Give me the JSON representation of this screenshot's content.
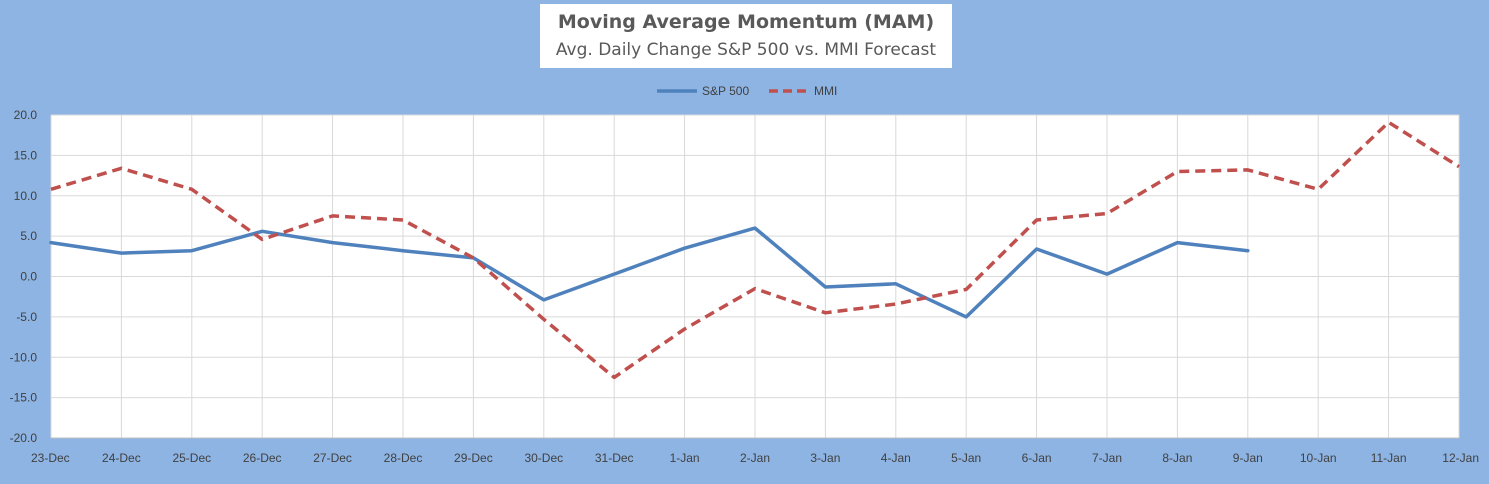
{
  "chart_data": {
    "type": "line",
    "title": "Moving Average Momentum (MAM)",
    "subtitle": "Avg. Daily Change S&P 500 vs. MMI Forecast",
    "categories": [
      "23-Dec",
      "24-Dec",
      "25-Dec",
      "26-Dec",
      "27-Dec",
      "28-Dec",
      "29-Dec",
      "30-Dec",
      "31-Dec",
      "1-Jan",
      "2-Jan",
      "3-Jan",
      "4-Jan",
      "5-Jan",
      "6-Jan",
      "7-Jan",
      "8-Jan",
      "9-Jan",
      "10-Jan",
      "11-Jan",
      "12-Jan"
    ],
    "ylim": [
      -20,
      20
    ],
    "yticks": [
      20,
      15,
      10,
      5,
      0,
      -5,
      -10,
      -15,
      -20
    ],
    "ytick_labels": [
      "20.0",
      "15.0",
      "10.0",
      "5.0",
      "0.0",
      "-5.0",
      "-10.0",
      "-15.0",
      "-20.0"
    ],
    "grid": true,
    "legend_position": "top-center",
    "series": [
      {
        "name": "S&P 500",
        "style": "solid",
        "color": "#4f81bd",
        "values": [
          4.2,
          2.9,
          3.2,
          5.6,
          4.2,
          3.2,
          2.3,
          -2.9,
          0.3,
          3.5,
          6.0,
          -1.3,
          -0.9,
          -5.0,
          3.4,
          0.3,
          4.2,
          3.2,
          null,
          null,
          null
        ]
      },
      {
        "name": "MMI",
        "style": "dashed",
        "color": "#c0504d",
        "values": [
          10.8,
          13.4,
          10.8,
          4.6,
          7.5,
          7.0,
          2.3,
          -5.3,
          -12.5,
          -6.5,
          -1.5,
          -4.5,
          -3.4,
          -1.6,
          7.0,
          7.8,
          13.0,
          13.2,
          10.8,
          19.1,
          13.6
        ]
      }
    ]
  }
}
